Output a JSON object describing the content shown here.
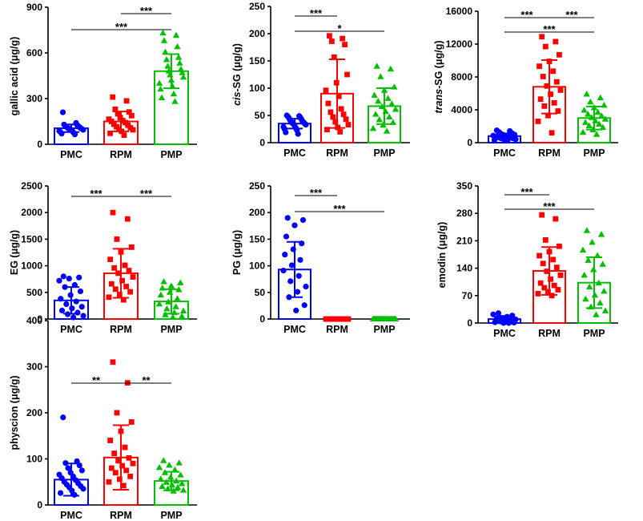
{
  "series_style": [
    {
      "color": "#0000FF",
      "marker": "circle"
    },
    {
      "color": "#FF0000",
      "marker": "square"
    },
    {
      "color": "#00C000",
      "marker": "triangle"
    }
  ],
  "chart_data": [
    {
      "type": "bar",
      "ylabel": [
        {
          "text": "gallic acid (μg/g)",
          "italic": false
        }
      ],
      "categories": [
        "PMC",
        "RPM",
        "PMP"
      ],
      "ylim": [
        0,
        900
      ],
      "yticks": [
        0,
        300,
        600,
        900
      ],
      "series": [
        {
          "mean": 105,
          "sd": 25,
          "points": [
            210,
            140,
            130,
            125,
            120,
            118,
            115,
            112,
            108,
            105,
            102,
            100,
            98,
            95,
            92,
            88,
            85,
            80,
            75,
            70,
            65
          ]
        },
        {
          "mean": 150,
          "sd": 65,
          "points": [
            310,
            285,
            230,
            212,
            200,
            188,
            175,
            165,
            155,
            150,
            142,
            132,
            125,
            115,
            108,
            100,
            95,
            85,
            72,
            60
          ]
        },
        {
          "mean": 480,
          "sd": 112,
          "points": [
            730,
            715,
            680,
            640,
            605,
            570,
            555,
            532,
            512,
            492,
            480,
            470,
            455,
            440,
            420,
            400,
            380,
            362,
            330,
            305,
            280
          ]
        }
      ],
      "comparisons": [
        {
          "groups": [
            0,
            2
          ],
          "label": "***"
        },
        {
          "groups": [
            1,
            2
          ],
          "label": "***"
        }
      ]
    },
    {
      "type": "bar",
      "ylabel": [
        {
          "text": "cis",
          "italic": true
        },
        {
          "text": "-SG (μg/g)",
          "italic": false
        }
      ],
      "categories": [
        "PMC",
        "RPM",
        "PMP"
      ],
      "ylim": [
        0,
        250
      ],
      "yticks": [
        0,
        50,
        100,
        150,
        200,
        250
      ],
      "series": [
        {
          "mean": 35,
          "sd": 9,
          "points": [
            50,
            49,
            48,
            46,
            45,
            43,
            41,
            39,
            38,
            37,
            36,
            35,
            34,
            33,
            31,
            29,
            27,
            25,
            23,
            19,
            16
          ]
        },
        {
          "mean": 90,
          "sd": 63,
          "points": [
            196,
            191,
            186,
            180,
            157,
            125,
            110,
            96,
            85,
            72,
            62,
            56,
            52,
            47,
            43,
            38,
            33,
            28,
            24,
            20
          ]
        },
        {
          "mean": 67,
          "sd": 33,
          "points": [
            140,
            135,
            121,
            102,
            96,
            87,
            81,
            76,
            71,
            66,
            61,
            57,
            52,
            47,
            42,
            37,
            32,
            26,
            21
          ]
        }
      ],
      "comparisons": [
        {
          "groups": [
            0,
            1
          ],
          "label": "***"
        },
        {
          "groups": [
            0,
            2
          ],
          "label": "*"
        }
      ]
    },
    {
      "type": "bar",
      "ylabel": [
        {
          "text": "trans",
          "italic": true
        },
        {
          "text": "-SG (μg/g)",
          "italic": false
        }
      ],
      "categories": [
        "PMC",
        "RPM",
        "PMP"
      ],
      "ylim": [
        0,
        16000
      ],
      "yticks": [
        0,
        4000,
        8000,
        12000,
        16000
      ],
      "series": [
        {
          "mean": 800,
          "sd": 320,
          "points": [
            1500,
            1420,
            1280,
            1150,
            1050,
            980,
            920,
            860,
            810,
            760,
            710,
            660,
            610,
            560,
            510,
            460,
            410,
            360,
            300,
            250
          ]
        },
        {
          "mean": 6800,
          "sd": 3250,
          "points": [
            12900,
            12300,
            11700,
            10700,
            9900,
            9300,
            8700,
            8050,
            7400,
            6900,
            6400,
            5900,
            5300,
            4850,
            4450,
            3850,
            3300,
            2600,
            1200
          ]
        },
        {
          "mean": 3000,
          "sd": 1400,
          "points": [
            5900,
            5450,
            4950,
            4550,
            4250,
            3950,
            3700,
            3450,
            3250,
            3050,
            2850,
            2650,
            2450,
            2250,
            2050,
            1850,
            1550,
            1250,
            1000
          ]
        }
      ],
      "comparisons": [
        {
          "groups": [
            0,
            1
          ],
          "label": "***"
        },
        {
          "groups": [
            1,
            2
          ],
          "label": "***"
        },
        {
          "groups": [
            0,
            2
          ],
          "label": "***"
        }
      ]
    },
    {
      "type": "bar",
      "ylabel": [
        {
          "text": "EG (μg/g)",
          "italic": false
        }
      ],
      "categories": [
        "PMC",
        "RPM",
        "PMP"
      ],
      "ylim": [
        0,
        2500
      ],
      "yticks": [
        0,
        500,
        1000,
        1500,
        2000,
        2500
      ],
      "series": [
        {
          "mean": 350,
          "sd": 250,
          "points": [
            800,
            780,
            760,
            720,
            640,
            600,
            520,
            450,
            380,
            330,
            280,
            230,
            200,
            160,
            120,
            90,
            60,
            30
          ]
        },
        {
          "mean": 860,
          "sd": 460,
          "points": [
            2000,
            1880,
            1500,
            1350,
            1260,
            1120,
            1010,
            960,
            910,
            860,
            790,
            720,
            660,
            610,
            560,
            510,
            460,
            410,
            360
          ]
        },
        {
          "mean": 330,
          "sd": 230,
          "points": [
            700,
            680,
            620,
            580,
            550,
            500,
            450,
            380,
            320,
            280,
            230,
            190,
            150,
            120,
            80,
            50,
            30
          ]
        }
      ],
      "comparisons": [
        {
          "groups": [
            0,
            1
          ],
          "label": "***"
        },
        {
          "groups": [
            1,
            2
          ],
          "label": "***"
        }
      ]
    },
    {
      "type": "bar",
      "ylabel": [
        {
          "text": "PG (μg/g)",
          "italic": false
        }
      ],
      "categories": [
        "PMC",
        "RPM",
        "PMP"
      ],
      "ylim": [
        0,
        250
      ],
      "yticks": [
        0,
        50,
        100,
        150,
        200,
        250
      ],
      "series": [
        {
          "mean": 93,
          "sd": 52,
          "points": [
            190,
            186,
            176,
            155,
            142,
            131,
            121,
            111,
            101,
            91,
            81,
            71,
            61,
            51,
            41,
            26,
            16
          ]
        },
        {
          "mean": 0,
          "sd": 0,
          "points": [
            0,
            0,
            0,
            0,
            0,
            0,
            0,
            0,
            0,
            0,
            0,
            0,
            0,
            0,
            0,
            0,
            0,
            0,
            0,
            0
          ]
        },
        {
          "mean": 0,
          "sd": 0,
          "points": [
            0,
            0,
            0,
            0,
            0,
            0,
            0,
            0,
            0,
            0,
            0,
            0,
            0,
            0,
            0,
            0,
            0,
            0,
            0,
            0
          ]
        }
      ],
      "comparisons": [
        {
          "groups": [
            0,
            1
          ],
          "label": "***"
        },
        {
          "groups": [
            0,
            2
          ],
          "label": "***"
        }
      ]
    },
    {
      "type": "bar",
      "ylabel": [
        {
          "text": "emodin (μg/g)",
          "italic": false
        }
      ],
      "categories": [
        "PMC",
        "RPM",
        "PMP"
      ],
      "ylim": [
        0,
        350
      ],
      "yticks": [
        0,
        70,
        140,
        210,
        280,
        350
      ],
      "series": [
        {
          "mean": 10,
          "sd": 8,
          "points": [
            25,
            22,
            19,
            16,
            13,
            11,
            9,
            7,
            5,
            4,
            2,
            1,
            0,
            0
          ]
        },
        {
          "mean": 133,
          "sd": 61,
          "points": [
            276,
            266,
            212,
            196,
            182,
            172,
            162,
            152,
            142,
            132,
            122,
            112,
            102,
            96,
            90,
            85,
            80,
            75,
            70
          ]
        },
        {
          "mean": 103,
          "sd": 65,
          "points": [
            236,
            226,
            206,
            186,
            172,
            160,
            150,
            136,
            122,
            102,
            92,
            81,
            71,
            61,
            51,
            41,
            31,
            21
          ]
        }
      ],
      "comparisons": [
        {
          "groups": [
            0,
            1
          ],
          "label": "***"
        },
        {
          "groups": [
            0,
            2
          ],
          "label": "***"
        }
      ]
    },
    {
      "type": "bar",
      "ylabel": [
        {
          "text": "physcion (μg/g)",
          "italic": false
        }
      ],
      "categories": [
        "PMC",
        "RPM",
        "PMP"
      ],
      "ylim": [
        0,
        400
      ],
      "yticks": [
        0,
        100,
        200,
        300,
        400
      ],
      "series": [
        {
          "mean": 55,
          "sd": 35,
          "points": [
            190,
            95,
            91,
            86,
            80,
            75,
            70,
            66,
            62,
            58,
            54,
            50,
            47,
            44,
            41,
            38,
            35,
            31,
            26,
            22
          ]
        },
        {
          "mean": 103,
          "sd": 70,
          "points": [
            310,
            265,
            200,
            180,
            160,
            140,
            125,
            112,
            102,
            96,
            90,
            85,
            80,
            75,
            70,
            62,
            56,
            50,
            42
          ]
        },
        {
          "mean": 52,
          "sd": 20,
          "points": [
            96,
            91,
            86,
            81,
            76,
            70,
            65,
            60,
            56,
            52,
            49,
            46,
            43,
            40,
            38,
            35,
            32,
            30
          ]
        }
      ],
      "comparisons": [
        {
          "groups": [
            0,
            1
          ],
          "label": "**"
        },
        {
          "groups": [
            1,
            2
          ],
          "label": "**"
        }
      ]
    }
  ]
}
